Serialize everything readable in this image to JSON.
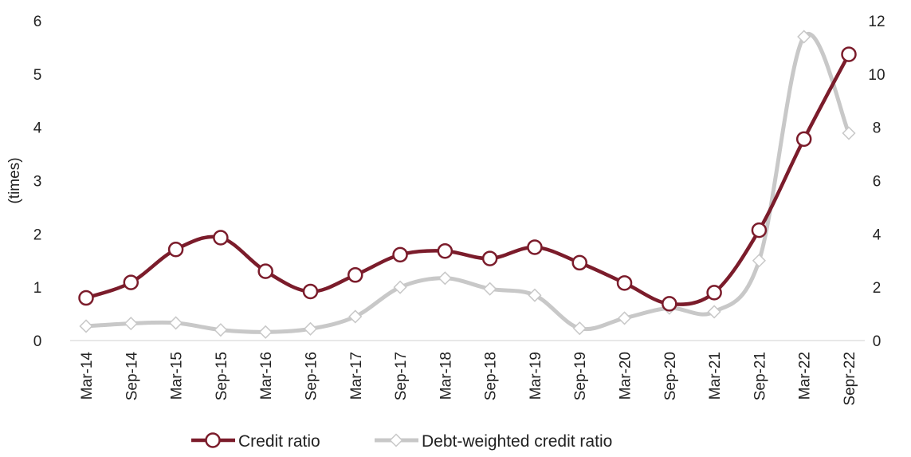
{
  "chart_data": {
    "type": "line",
    "title": "",
    "categories": [
      "Mar-14",
      "Sep-14",
      "Mar-15",
      "Sep-15",
      "Mar-16",
      "Sep-16",
      "Mar-17",
      "Sep-17",
      "Mar-18",
      "Sep-18",
      "Mar-19",
      "Sep-19",
      "Mar-20",
      "Sep-20",
      "Mar-21",
      "Sep-21",
      "Mar-22",
      "Sepr-22"
    ],
    "series": [
      {
        "name": "Credit ratio",
        "axis": "left",
        "color": "#7b1c2b",
        "marker": "circle",
        "values": [
          0.8,
          1.09,
          1.71,
          1.93,
          1.3,
          0.92,
          1.23,
          1.61,
          1.68,
          1.54,
          1.75,
          1.46,
          1.08,
          0.69,
          0.9,
          2.07,
          3.78,
          5.37
        ]
      },
      {
        "name": "Debt-weighted credit ratio",
        "axis": "right",
        "color": "#c8c8c8",
        "marker": "diamond",
        "values": [
          0.54,
          0.64,
          0.66,
          0.4,
          0.32,
          0.44,
          0.9,
          2.0,
          2.34,
          1.94,
          1.7,
          0.46,
          0.84,
          1.22,
          1.08,
          3.0,
          11.4,
          7.78
        ]
      }
    ],
    "ylabel": "(times)",
    "ylim": [
      0,
      6
    ],
    "yticks": [
      "0",
      "1",
      "2",
      "3",
      "4",
      "5",
      "6"
    ],
    "y2lim": [
      0,
      12
    ],
    "y2ticks": [
      "0",
      "2",
      "4",
      "6",
      "8",
      "10",
      "12"
    ],
    "grid": false,
    "legend_position": "bottom-center"
  }
}
